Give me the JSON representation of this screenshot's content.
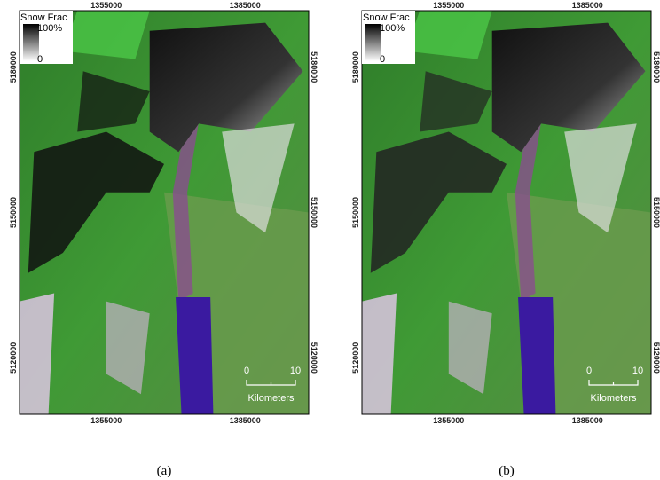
{
  "panels": [
    {
      "caption": "(a)",
      "legend": {
        "title": "Snow Frac",
        "max": "100%",
        "min": "0"
      },
      "x_ticks": [
        "1355000",
        "1385000"
      ],
      "y_ticks": [
        "5180000",
        "5150000",
        "5120000"
      ],
      "scale_bar": {
        "start": "0",
        "end": "10",
        "unit": "Kilometers"
      }
    },
    {
      "caption": "(b)",
      "legend": {
        "title": "Snow Frac",
        "max": "100%",
        "min": "0"
      },
      "x_ticks": [
        "1355000",
        "1385000"
      ],
      "y_ticks": [
        "5180000",
        "5150000",
        "5120000"
      ],
      "scale_bar": {
        "start": "0",
        "end": "10",
        "unit": "Kilometers"
      }
    }
  ]
}
